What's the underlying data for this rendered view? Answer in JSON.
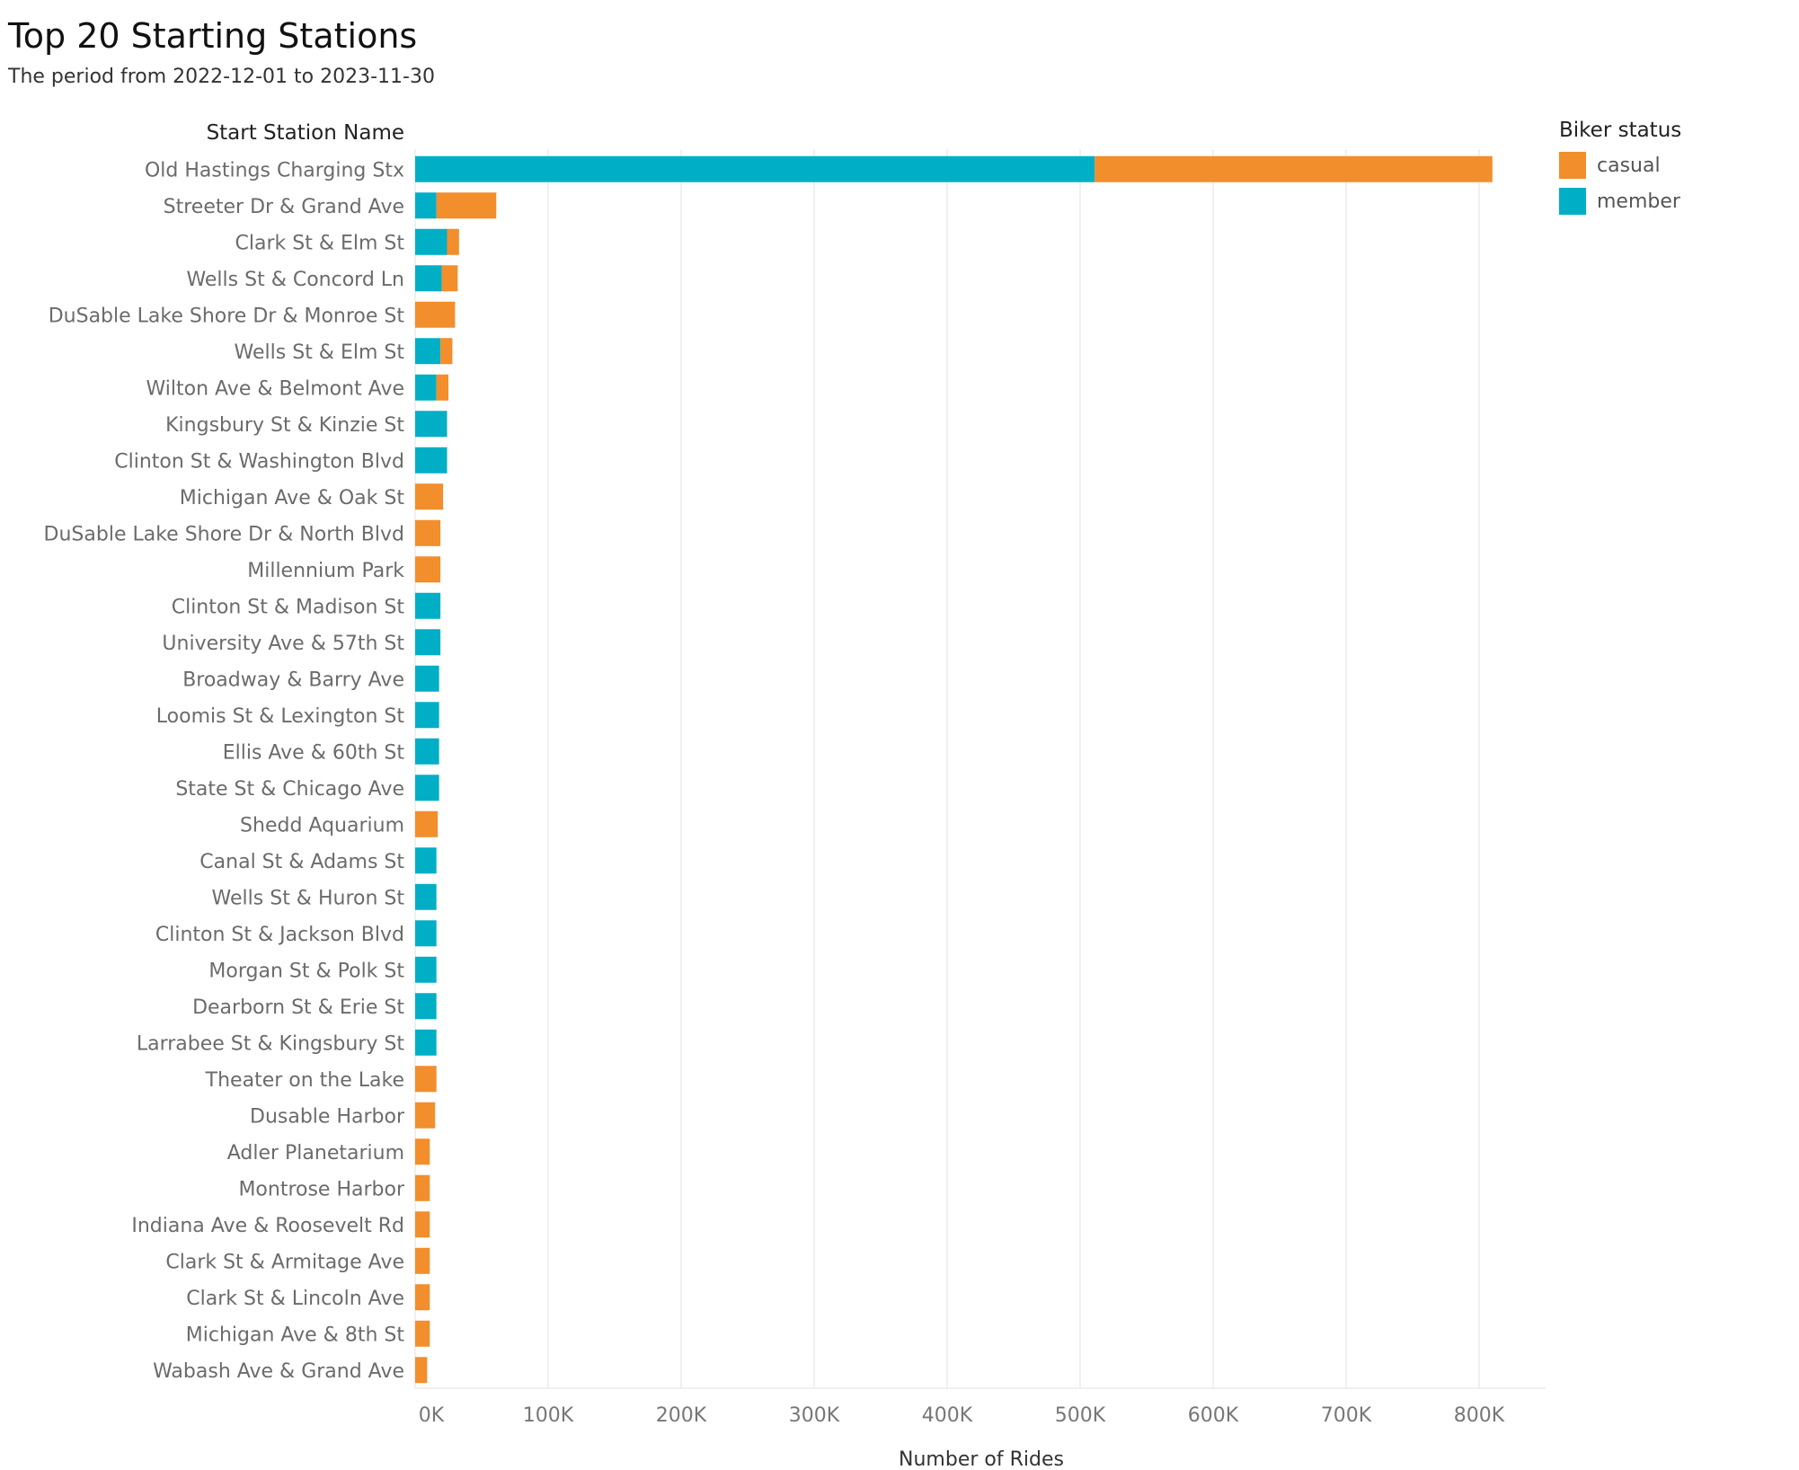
{
  "title": "Top 20 Starting Stations",
  "subtitle": "The period from 2022-12-01 to 2023-11-30",
  "colors": {
    "casual": "#f28e2b",
    "member": "#00afc6"
  },
  "legend": {
    "title": "Biker status",
    "items": [
      {
        "label": "casual",
        "color": "#f28e2b"
      },
      {
        "label": "member",
        "color": "#00afc6"
      }
    ]
  },
  "chart_data": {
    "type": "bar",
    "orientation": "horizontal",
    "stacked": true,
    "row_header": "Start Station Name",
    "xlabel": "Number of Rides",
    "xlim": [
      0,
      850000
    ],
    "x_ticks": [
      0,
      100000,
      200000,
      300000,
      400000,
      500000,
      600000,
      700000,
      800000
    ],
    "x_tick_labels": [
      "0K",
      "100K",
      "200K",
      "300K",
      "400K",
      "500K",
      "600K",
      "700K",
      "800K"
    ],
    "grid": true,
    "legend_position": "top-right",
    "categories": [
      "Old Hastings Charging Stx",
      "Streeter Dr & Grand Ave",
      "Clark St & Elm St",
      "Wells St & Concord Ln",
      "DuSable Lake Shore Dr & Monroe St",
      "Wells St & Elm St",
      "Wilton Ave & Belmont Ave",
      "Kingsbury St & Kinzie St",
      "Clinton St & Washington Blvd",
      "Michigan Ave & Oak St",
      "DuSable Lake Shore Dr & North Blvd",
      "Millennium Park",
      "Clinton St & Madison St",
      "University Ave & 57th St",
      "Broadway & Barry Ave",
      "Loomis St & Lexington St",
      "Ellis Ave & 60th St",
      "State St & Chicago Ave",
      "Shedd Aquarium",
      "Canal St & Adams St",
      "Wells St & Huron St",
      "Clinton St & Jackson Blvd",
      "Morgan St & Polk St",
      "Dearborn St & Erie St",
      "Larrabee St & Kingsbury St",
      "Theater on the Lake",
      "Dusable Harbor",
      "Adler Planetarium",
      "Montrose Harbor",
      "Indiana Ave & Roosevelt Rd",
      "Clark St & Armitage Ave",
      "Clark St & Lincoln Ave",
      "Michigan Ave & 8th St",
      "Wabash Ave & Grand Ave"
    ],
    "series": [
      {
        "name": "member",
        "color": "#00afc6",
        "values": [
          511000,
          16000,
          24000,
          20000,
          0,
          19000,
          16000,
          24000,
          24000,
          0,
          0,
          0,
          19000,
          19000,
          18000,
          18000,
          18000,
          18000,
          0,
          16000,
          16000,
          16000,
          16000,
          16000,
          16000,
          0,
          0,
          0,
          0,
          0,
          0,
          0,
          0,
          0
        ]
      },
      {
        "name": "casual",
        "color": "#f28e2b",
        "values": [
          299000,
          45000,
          9000,
          12000,
          30000,
          9000,
          9000,
          0,
          0,
          21000,
          19000,
          19000,
          0,
          0,
          0,
          0,
          0,
          0,
          17000,
          0,
          0,
          0,
          0,
          0,
          0,
          16000,
          15000,
          11000,
          11000,
          11000,
          11000,
          11000,
          11000,
          9000
        ]
      }
    ]
  }
}
